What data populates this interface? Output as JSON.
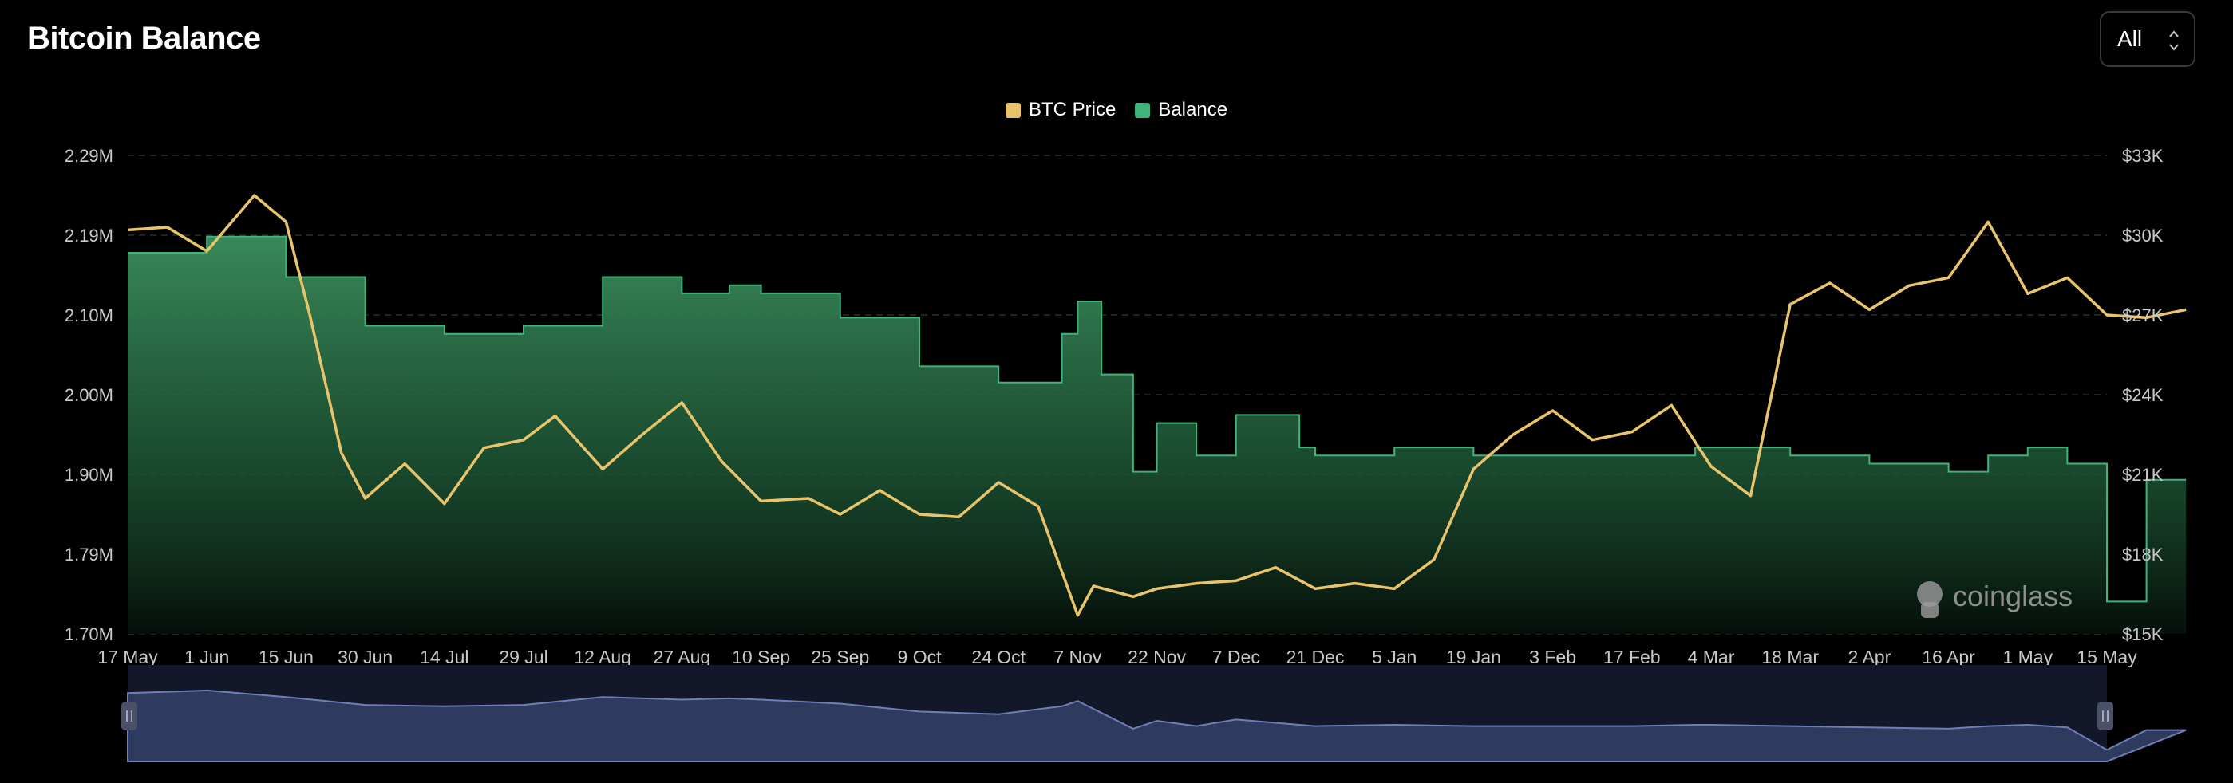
{
  "title": "Bitcoin Balance",
  "range_selector": {
    "value": "All"
  },
  "legend": [
    {
      "label": "BTC Price",
      "color": "#e9c46a"
    },
    {
      "label": "Balance",
      "color": "#3fb37a"
    }
  ],
  "watermark": {
    "text": "coinglass"
  },
  "chart_data": {
    "type": "line",
    "x_ticks": [
      "17 May",
      "1 Jun",
      "15 Jun",
      "30 Jun",
      "14 Jul",
      "29 Jul",
      "12 Aug",
      "27 Aug",
      "10 Sep",
      "25 Sep",
      "9 Oct",
      "24 Oct",
      "7 Nov",
      "22 Nov",
      "7 Dec",
      "21 Dec",
      "5 Jan",
      "19 Jan",
      "3 Feb",
      "17 Feb",
      "4 Mar",
      "18 Mar",
      "2 Apr",
      "16 Apr",
      "1 May",
      "15 May"
    ],
    "left_axis": {
      "ticks": [
        "2.29M",
        "2.19M",
        "2.10M",
        "2.00M",
        "1.90M",
        "1.79M",
        "1.70M"
      ],
      "ylim": [
        1.7,
        2.29
      ]
    },
    "right_axis": {
      "ticks": [
        "$33K",
        "$30K",
        "$27K",
        "$24K",
        "$21K",
        "$18K",
        "$15K"
      ],
      "ylim": [
        15000,
        33000
      ]
    },
    "grid": true,
    "legend_position": "top-center",
    "series": [
      {
        "name": "Balance",
        "axis": "left",
        "x_index": [
          0,
          1,
          2,
          3,
          4,
          5,
          6,
          7,
          7.6,
          8,
          9,
          10,
          11,
          11.8,
          12,
          12.3,
          12.7,
          13,
          13.5,
          14,
          14.8,
          15,
          16,
          17,
          18,
          19,
          19.8,
          20,
          21,
          22,
          23,
          23.5,
          24,
          24.5,
          25,
          25.5,
          26
        ],
        "values": [
          2.17,
          2.19,
          2.14,
          2.08,
          2.07,
          2.08,
          2.14,
          2.12,
          2.13,
          2.12,
          2.09,
          2.03,
          2.01,
          2.07,
          2.11,
          2.02,
          1.9,
          1.96,
          1.92,
          1.97,
          1.93,
          1.92,
          1.93,
          1.92,
          1.92,
          1.92,
          1.93,
          1.93,
          1.92,
          1.91,
          1.9,
          1.92,
          1.93,
          1.91,
          1.74,
          1.89,
          1.89
        ]
      },
      {
        "name": "BTC Price",
        "axis": "right",
        "x_index": [
          0,
          0.5,
          1,
          1.6,
          2,
          2.3,
          2.7,
          3,
          3.5,
          4,
          4.5,
          5,
          5.4,
          6,
          6.5,
          7,
          7.5,
          8,
          8.6,
          9,
          9.5,
          10,
          10.5,
          11,
          11.5,
          12,
          12.2,
          12.7,
          13,
          13.5,
          14,
          14.5,
          15,
          15.5,
          16,
          16.5,
          17,
          17.5,
          18,
          18.5,
          19,
          19.5,
          20,
          20.5,
          21,
          21.5,
          22,
          22.5,
          23,
          23.5,
          24,
          24.5,
          25,
          25.5,
          26
        ],
        "values": [
          30200,
          30300,
          29400,
          31500,
          30500,
          27000,
          21800,
          20100,
          21400,
          19900,
          22000,
          22300,
          23200,
          21200,
          22500,
          23700,
          21500,
          20000,
          20100,
          19500,
          20400,
          19500,
          19400,
          20700,
          19800,
          15700,
          16800,
          16400,
          16700,
          16900,
          17000,
          17500,
          16700,
          16900,
          16700,
          17800,
          21200,
          22500,
          23400,
          22300,
          22600,
          23600,
          21300,
          20200,
          27400,
          28200,
          27200,
          28100,
          28400,
          30500,
          27800,
          28400,
          27000,
          26900,
          27200
        ]
      }
    ],
    "navigator": {
      "left_handle": "||",
      "right_handle": "||"
    }
  }
}
